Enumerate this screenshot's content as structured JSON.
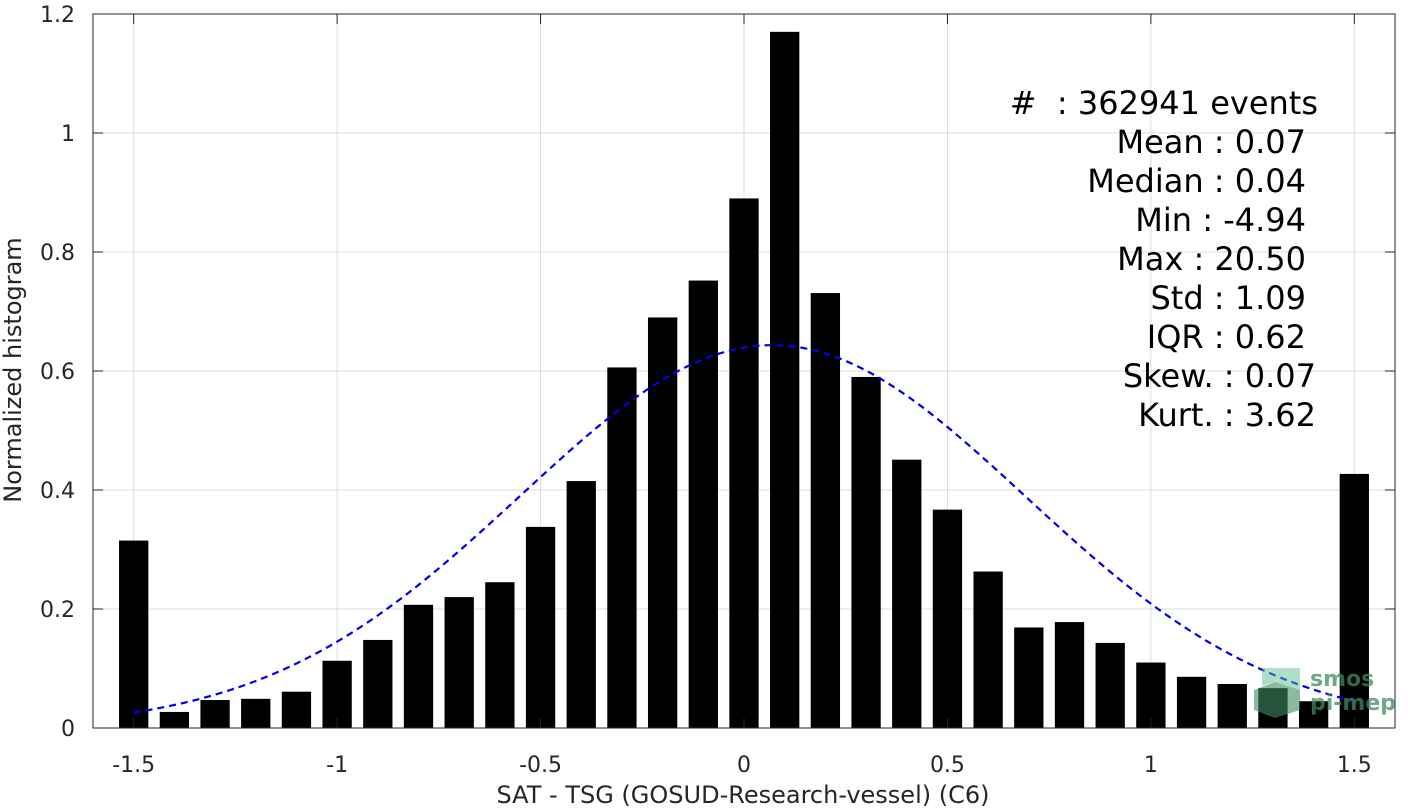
{
  "chart_data": {
    "type": "bar",
    "xlabel": "SAT - TSG (GOSUD-Research-vessel) (C6)",
    "ylabel": "Normalized histogram",
    "xlim": [
      -1.6,
      1.6
    ],
    "ylim": [
      0,
      1.2
    ],
    "xticks": [
      "-1.5",
      "-1",
      "-0.5",
      "0",
      "0.5",
      "1",
      "1.5"
    ],
    "yticks": [
      "0",
      "0.2",
      "0.4",
      "0.6",
      "0.8",
      "1",
      "1.2"
    ],
    "grid": true,
    "bar_color": "#000000",
    "bars": {
      "x": [
        -1.5,
        -1.4,
        -1.3,
        -1.2,
        -1.1,
        -1.0,
        -0.9,
        -0.8,
        -0.7,
        -0.6,
        -0.5,
        -0.4,
        -0.3,
        -0.2,
        -0.1,
        0.0,
        0.1,
        0.2,
        0.3,
        0.4,
        0.5,
        0.6,
        0.7,
        0.8,
        0.9,
        1.0,
        1.1,
        1.2,
        1.3,
        1.4,
        1.5
      ],
      "values": [
        0.315,
        0.027,
        0.047,
        0.049,
        0.061,
        0.113,
        0.148,
        0.207,
        0.22,
        0.245,
        0.338,
        0.415,
        0.606,
        0.69,
        0.752,
        0.89,
        1.17,
        0.731,
        0.59,
        0.451,
        0.367,
        0.263,
        0.169,
        0.178,
        0.143,
        0.11,
        0.086,
        0.074,
        0.067,
        0.045,
        0.427
      ],
      "width": 0.072
    },
    "fit_curve": {
      "style": "dashed",
      "color": "#0000ee",
      "mean": 0.07,
      "std": 0.62,
      "x_range": [
        -1.5,
        1.5
      ]
    },
    "annotations": [
      "#  : 362941 events",
      "Mean : 0.07",
      "Median : 0.04",
      "Min : -4.94",
      "Max : 20.50",
      "Std : 1.09",
      "IQR : 0.62",
      "Skew. : 0.07",
      "Kurt. : 3.62"
    ]
  },
  "watermark": {
    "line1": "smos",
    "line2": "pi-mep",
    "color": "#3f8a63"
  }
}
